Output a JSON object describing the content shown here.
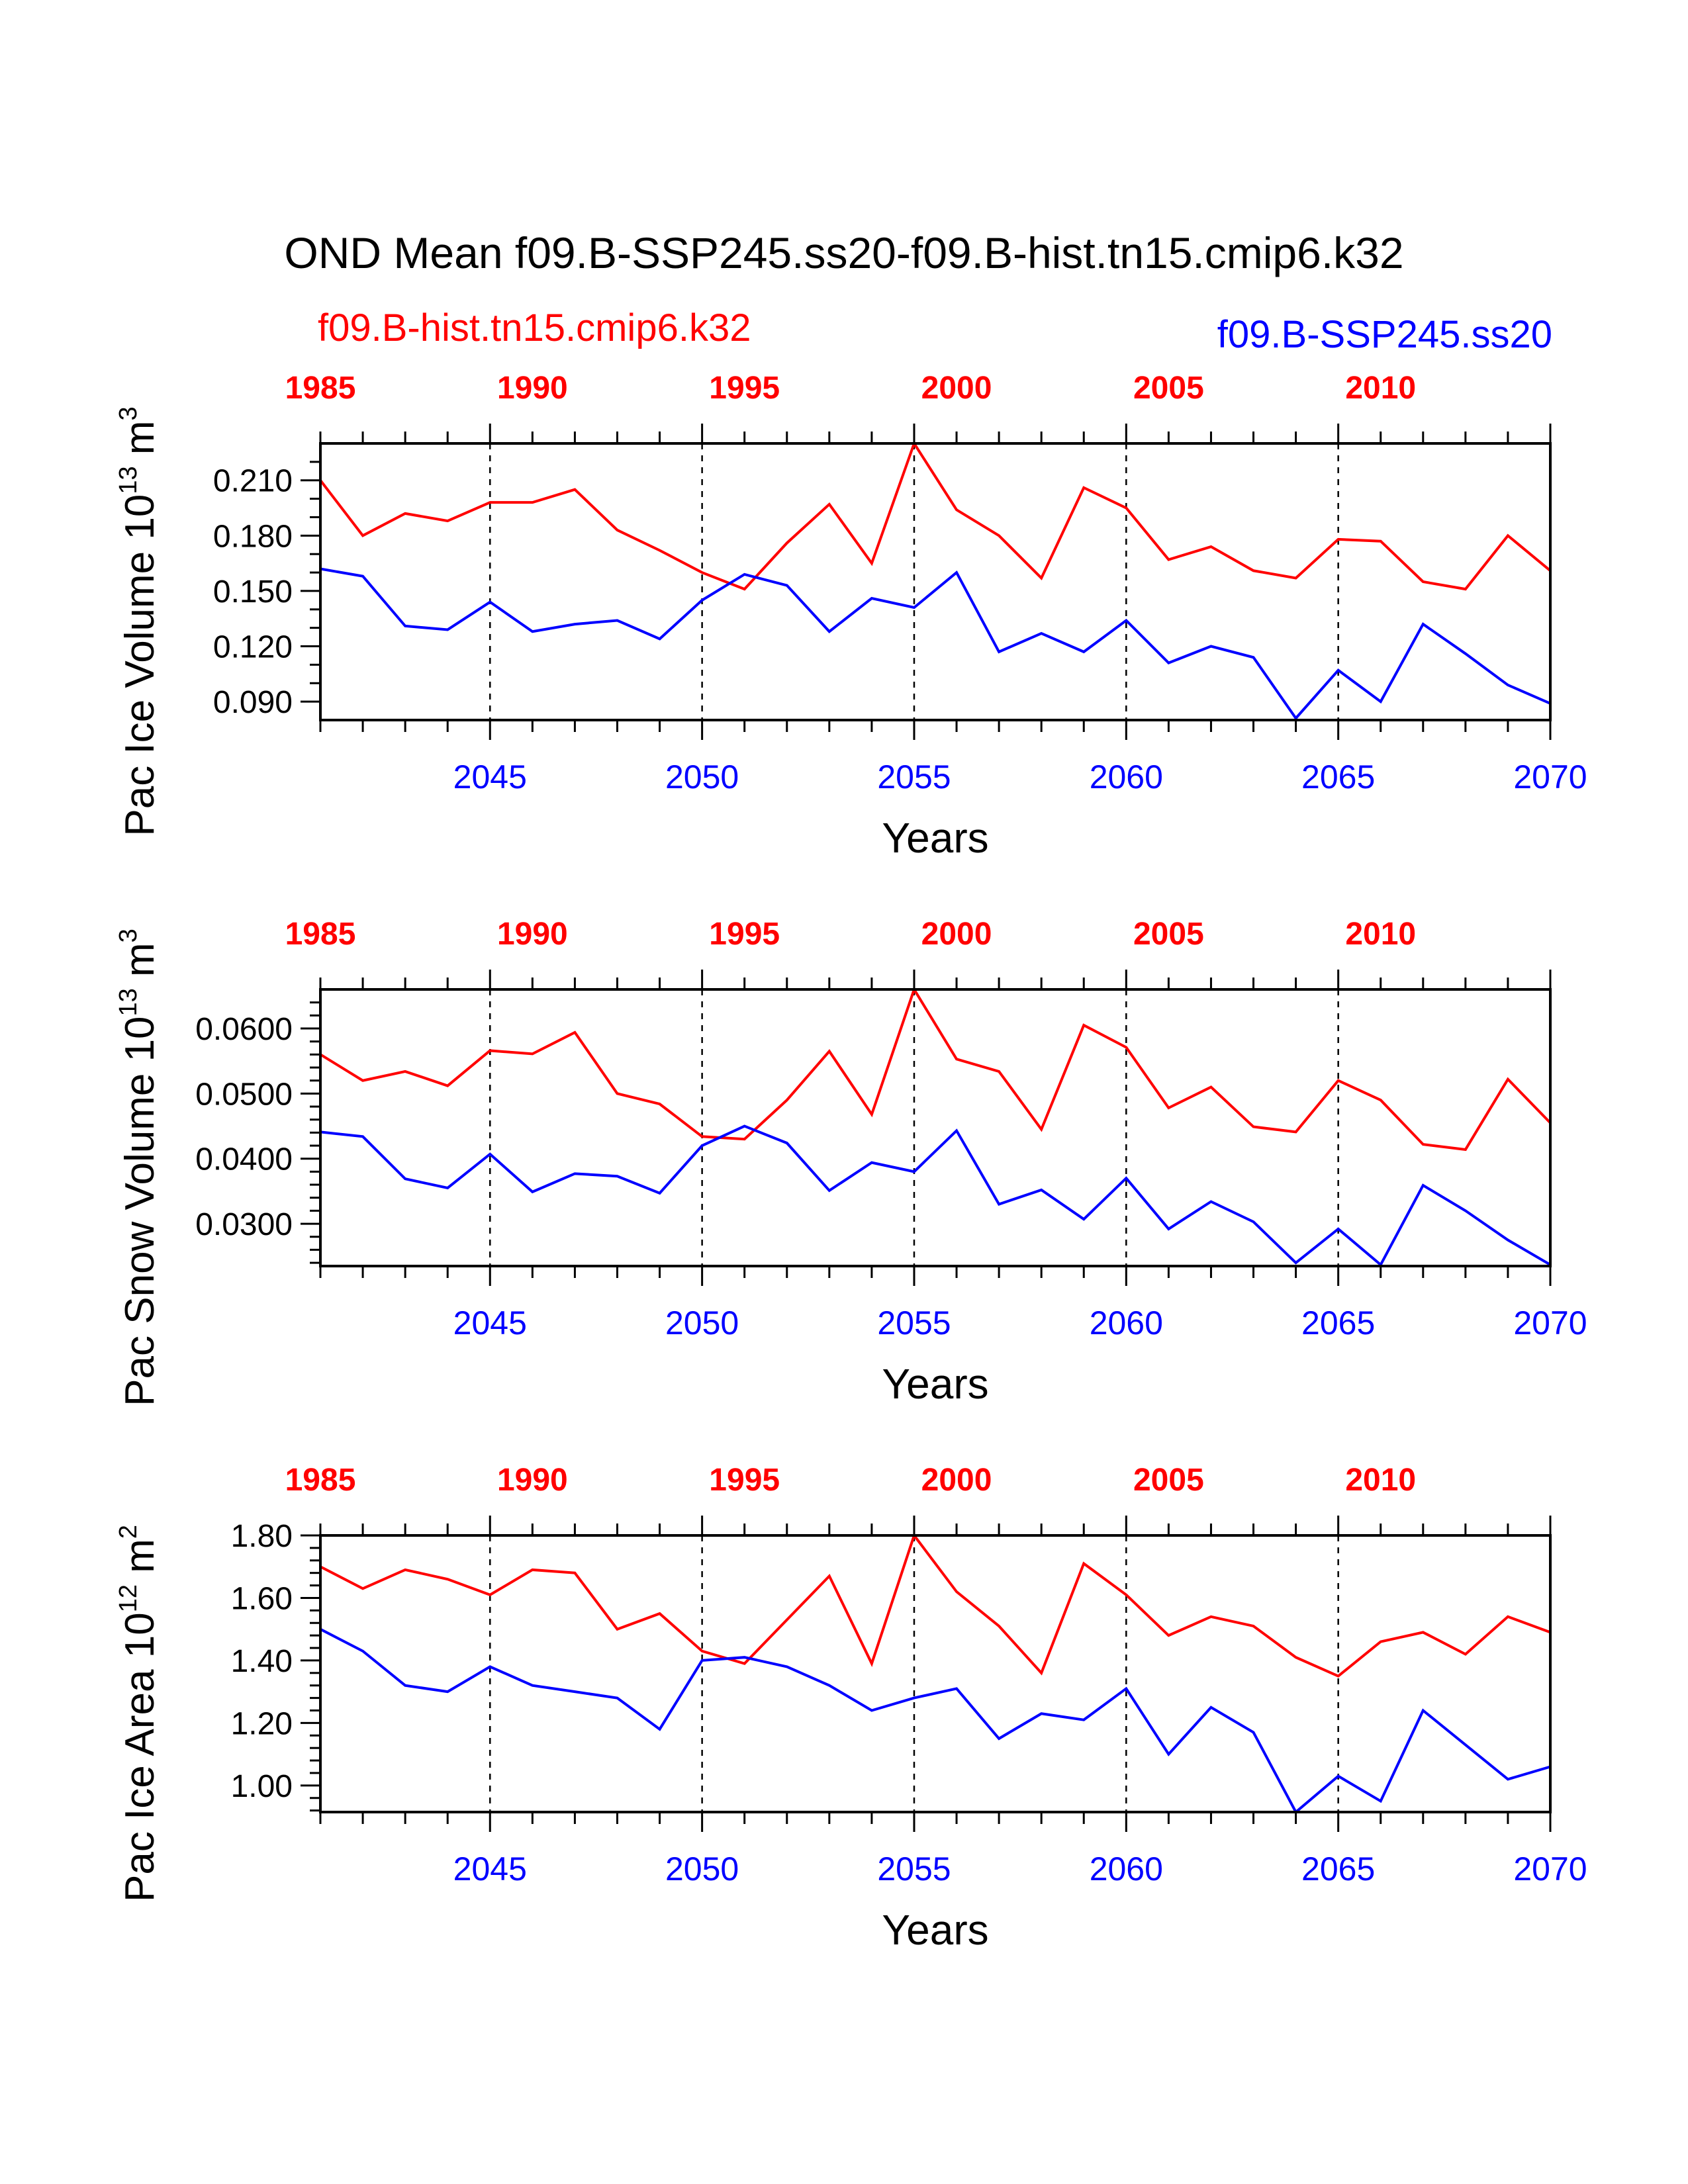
{
  "figure": {
    "title": "OND Mean f09.B-SSP245.ss20-f09.B-hist.tn15.cmip6.k32",
    "legend_left": "f09.B-hist.tn15.cmip6.k32",
    "legend_right": "f09.B-SSP245.ss20",
    "colors": {
      "hist": "#ff0000",
      "ssp": "#0000ff",
      "axis": "#000000"
    }
  },
  "chart_data": [
    {
      "type": "line",
      "ylabel": "Pac Ice Volume 10",
      "ylabel_exp": "13",
      "ylabel_unit": " m",
      "ylabel_unit_exp": "3",
      "xlabel": "Years",
      "xlim": [
        2041,
        2070
      ],
      "ylim": [
        0.08,
        0.23
      ],
      "y_ticks": [
        0.09,
        0.12,
        0.15,
        0.18,
        0.21
      ],
      "y_tick_labels": [
        "0.090",
        "0.120",
        "0.150",
        "0.180",
        "0.210"
      ],
      "y_minor_ticks": [
        0.1,
        0.11,
        0.13,
        0.14,
        0.16,
        0.17,
        0.19,
        0.2,
        0.22
      ],
      "x_ticks_bottom": [
        2045,
        2050,
        2055,
        2060,
        2065,
        2070
      ],
      "x_tick_labels_bottom": [
        "2045",
        "2050",
        "2055",
        "2060",
        "2065",
        "2070"
      ],
      "x_tick_labels_top": [
        "1985",
        "1990",
        "1995",
        "2000",
        "2005",
        "2010"
      ],
      "grid_x": [
        2045,
        2050,
        2055,
        2060,
        2065
      ],
      "series": [
        {
          "name": "f09.B-hist.tn15.cmip6.k32",
          "color": "#ff0000",
          "values": [
            0.21,
            0.18,
            0.192,
            0.188,
            0.198,
            0.198,
            0.205,
            0.183,
            0.172,
            0.16,
            0.151,
            0.176,
            0.197,
            0.165,
            0.23,
            0.194,
            0.18,
            0.157,
            0.206,
            0.195,
            0.167,
            0.174,
            0.161,
            0.157,
            0.178,
            0.177,
            0.155,
            0.151,
            0.18,
            0.161
          ]
        },
        {
          "name": "f09.B-SSP245.ss20",
          "color": "#0000ff",
          "values": [
            0.162,
            0.158,
            0.131,
            0.129,
            0.144,
            0.128,
            0.132,
            0.134,
            0.124,
            0.145,
            0.159,
            0.153,
            0.128,
            0.146,
            0.141,
            0.16,
            0.117,
            0.127,
            0.117,
            0.134,
            0.111,
            0.12,
            0.114,
            0.081,
            0.107,
            0.09,
            0.132,
            0.116,
            0.099,
            0.089
          ]
        }
      ]
    },
    {
      "type": "line",
      "ylabel": "Pac Snow Volume 10",
      "ylabel_exp": "13",
      "ylabel_unit": " m",
      "ylabel_unit_exp": "3",
      "xlabel": "Years",
      "xlim": [
        2041,
        2070
      ],
      "ylim": [
        0.0235,
        0.066
      ],
      "y_ticks": [
        0.03,
        0.04,
        0.05,
        0.06
      ],
      "y_tick_labels": [
        "0.0300",
        "0.0400",
        "0.0500",
        "0.0600"
      ],
      "y_minor_ticks": [
        0.024,
        0.026,
        0.028,
        0.032,
        0.034,
        0.036,
        0.038,
        0.042,
        0.044,
        0.046,
        0.048,
        0.052,
        0.054,
        0.056,
        0.058,
        0.062,
        0.064
      ],
      "x_ticks_bottom": [
        2045,
        2050,
        2055,
        2060,
        2065,
        2070
      ],
      "x_tick_labels_bottom": [
        "2045",
        "2050",
        "2055",
        "2060",
        "2065",
        "2070"
      ],
      "x_tick_labels_top": [
        "1985",
        "1990",
        "1995",
        "2000",
        "2005",
        "2010"
      ],
      "grid_x": [
        2045,
        2050,
        2055,
        2060,
        2065
      ],
      "series": [
        {
          "name": "f09.B-hist.tn15.cmip6.k32",
          "color": "#ff0000",
          "values": [
            0.056,
            0.052,
            0.0534,
            0.0512,
            0.0566,
            0.0561,
            0.0594,
            0.05,
            0.0484,
            0.0434,
            0.043,
            0.049,
            0.0565,
            0.0468,
            0.066,
            0.0553,
            0.0534,
            0.0445,
            0.0605,
            0.0571,
            0.0478,
            0.051,
            0.0449,
            0.0441,
            0.052,
            0.049,
            0.0422,
            0.0414,
            0.0522,
            0.0455
          ]
        },
        {
          "name": "f09.B-SSP245.ss20",
          "color": "#0000ff",
          "values": [
            0.0441,
            0.0434,
            0.0369,
            0.0355,
            0.0407,
            0.0349,
            0.0377,
            0.0373,
            0.0347,
            0.042,
            0.045,
            0.0424,
            0.0351,
            0.0394,
            0.038,
            0.0443,
            0.033,
            0.0352,
            0.0307,
            0.037,
            0.0292,
            0.0334,
            0.0303,
            0.024,
            0.0292,
            0.0237,
            0.0359,
            0.032,
            0.0275,
            0.0237
          ]
        }
      ]
    },
    {
      "type": "line",
      "ylabel": "Pac Ice Area 10",
      "ylabel_exp": "12",
      "ylabel_unit": " m",
      "ylabel_unit_exp": "2",
      "xlabel": "Years",
      "xlim": [
        2041,
        2070
      ],
      "ylim": [
        0.915,
        1.8
      ],
      "y_ticks": [
        1.0,
        1.2,
        1.4,
        1.6,
        1.8
      ],
      "y_tick_labels": [
        "1.00",
        "1.20",
        "1.40",
        "1.60",
        "1.80"
      ],
      "y_minor_ticks": [
        0.92,
        0.96,
        1.04,
        1.08,
        1.12,
        1.16,
        1.24,
        1.28,
        1.32,
        1.36,
        1.44,
        1.48,
        1.52,
        1.56,
        1.64,
        1.68,
        1.72,
        1.76
      ],
      "x_ticks_bottom": [
        2045,
        2050,
        2055,
        2060,
        2065,
        2070
      ],
      "x_tick_labels_bottom": [
        "2045",
        "2050",
        "2055",
        "2060",
        "2065",
        "2070"
      ],
      "x_tick_labels_top": [
        "1985",
        "1990",
        "1995",
        "2000",
        "2005",
        "2010"
      ],
      "grid_x": [
        2045,
        2050,
        2055,
        2060,
        2065
      ],
      "series": [
        {
          "name": "f09.B-hist.tn15.cmip6.k32",
          "color": "#ff0000",
          "values": [
            1.7,
            1.63,
            1.69,
            1.66,
            1.61,
            1.69,
            1.68,
            1.5,
            1.55,
            1.43,
            1.39,
            1.53,
            1.67,
            1.39,
            1.8,
            1.62,
            1.51,
            1.36,
            1.71,
            1.61,
            1.48,
            1.54,
            1.51,
            1.41,
            1.35,
            1.46,
            1.49,
            1.42,
            1.54,
            1.49
          ]
        },
        {
          "name": "f09.B-SSP245.ss20",
          "color": "#0000ff",
          "values": [
            1.5,
            1.43,
            1.32,
            1.3,
            1.38,
            1.32,
            1.3,
            1.28,
            1.18,
            1.4,
            1.41,
            1.38,
            1.32,
            1.24,
            1.28,
            1.31,
            1.15,
            1.23,
            1.21,
            1.31,
            1.1,
            1.25,
            1.17,
            0.915,
            1.03,
            0.95,
            1.24,
            1.13,
            1.02,
            1.06
          ]
        }
      ]
    }
  ]
}
